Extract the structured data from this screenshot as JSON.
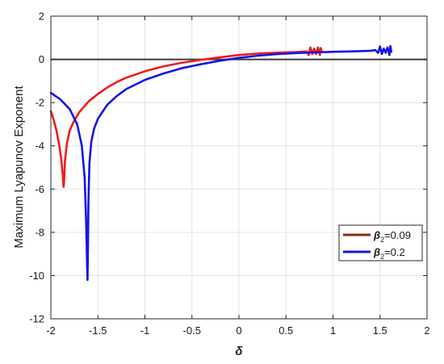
{
  "chart_data": {
    "type": "line",
    "title": "",
    "xlabel": "δ",
    "ylabel": "Maximum Lyapunov Exponent",
    "xlim": [
      -2,
      2
    ],
    "ylim": [
      -12,
      2
    ],
    "x_ticks": [
      "-2",
      "-1.5",
      "-1",
      "-0.5",
      "0",
      "0.5",
      "1",
      "1.5",
      "2"
    ],
    "y_ticks": [
      "2",
      "0",
      "-2",
      "-4",
      "-6",
      "-8",
      "-10",
      "-12"
    ],
    "grid": true,
    "legend_position": "lower-right",
    "reference_line_y": 0,
    "reference_line_color": "#3a3a3a",
    "series": [
      {
        "legend_symbol": "β",
        "legend_sub": "2",
        "legend_value": "=0.09",
        "color": "#ee1c1c",
        "legend_color": "#8b2a10",
        "points": [
          [
            -2.0,
            -2.4
          ],
          [
            -1.97,
            -2.8
          ],
          [
            -1.94,
            -3.3
          ],
          [
            -1.91,
            -4.0
          ],
          [
            -1.89,
            -4.6
          ],
          [
            -1.875,
            -5.3
          ],
          [
            -1.865,
            -5.9
          ],
          [
            -1.86,
            -5.7
          ],
          [
            -1.85,
            -4.7
          ],
          [
            -1.83,
            -3.9
          ],
          [
            -1.8,
            -3.3
          ],
          [
            -1.76,
            -2.9
          ],
          [
            -1.7,
            -2.45
          ],
          [
            -1.6,
            -1.95
          ],
          [
            -1.5,
            -1.6
          ],
          [
            -1.4,
            -1.3
          ],
          [
            -1.3,
            -1.05
          ],
          [
            -1.2,
            -0.85
          ],
          [
            -1.0,
            -0.55
          ],
          [
            -0.8,
            -0.32
          ],
          [
            -0.6,
            -0.15
          ],
          [
            -0.4,
            -0.02
          ],
          [
            -0.2,
            0.1
          ],
          [
            0.0,
            0.2
          ],
          [
            0.2,
            0.27
          ],
          [
            0.4,
            0.31
          ],
          [
            0.6,
            0.34
          ],
          [
            0.72,
            0.37
          ],
          [
            0.74,
            0.2
          ],
          [
            0.76,
            0.55
          ],
          [
            0.78,
            0.25
          ],
          [
            0.8,
            0.5
          ],
          [
            0.82,
            0.25
          ],
          [
            0.84,
            0.55
          ],
          [
            0.86,
            0.2
          ],
          [
            0.87,
            0.52
          ],
          [
            0.88,
            0.38
          ]
        ]
      },
      {
        "legend_symbol": "β",
        "legend_sub": "2",
        "legend_value": "=0.2",
        "color": "#1414e6",
        "legend_color": "#1414e6",
        "points": [
          [
            -2.0,
            -1.55
          ],
          [
            -1.9,
            -1.85
          ],
          [
            -1.8,
            -2.3
          ],
          [
            -1.72,
            -3.0
          ],
          [
            -1.67,
            -4.0
          ],
          [
            -1.64,
            -5.5
          ],
          [
            -1.625,
            -7.5
          ],
          [
            -1.615,
            -9.5
          ],
          [
            -1.61,
            -10.2
          ],
          [
            -1.605,
            -8.6
          ],
          [
            -1.6,
            -6.5
          ],
          [
            -1.59,
            -4.8
          ],
          [
            -1.57,
            -3.8
          ],
          [
            -1.54,
            -3.2
          ],
          [
            -1.5,
            -2.75
          ],
          [
            -1.4,
            -2.1
          ],
          [
            -1.3,
            -1.7
          ],
          [
            -1.2,
            -1.38
          ],
          [
            -1.0,
            -0.95
          ],
          [
            -0.8,
            -0.65
          ],
          [
            -0.6,
            -0.4
          ],
          [
            -0.4,
            -0.22
          ],
          [
            -0.2,
            -0.06
          ],
          [
            0.0,
            0.07
          ],
          [
            0.2,
            0.17
          ],
          [
            0.4,
            0.24
          ],
          [
            0.6,
            0.29
          ],
          [
            0.8,
            0.32
          ],
          [
            1.0,
            0.35
          ],
          [
            1.2,
            0.37
          ],
          [
            1.4,
            0.4
          ],
          [
            1.45,
            0.43
          ],
          [
            1.48,
            0.3
          ],
          [
            1.5,
            0.6
          ],
          [
            1.52,
            0.25
          ],
          [
            1.54,
            0.5
          ],
          [
            1.56,
            0.3
          ],
          [
            1.58,
            0.55
          ],
          [
            1.6,
            0.2
          ],
          [
            1.61,
            0.62
          ],
          [
            1.62,
            0.35
          ]
        ]
      }
    ]
  }
}
